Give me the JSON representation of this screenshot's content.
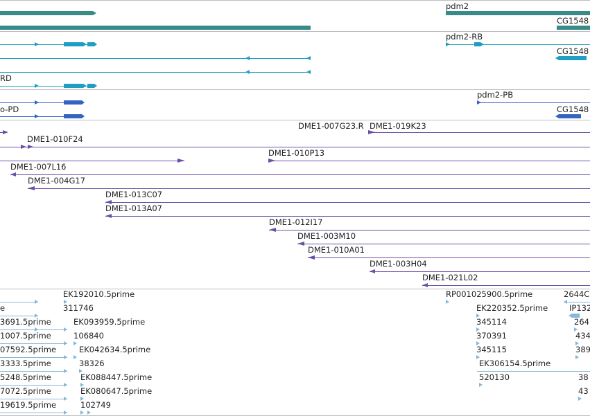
{
  "colors": {
    "gene": "#3a8a8a",
    "mrna": "#1e9ec2",
    "cds": "#3563c2",
    "clone": "#6a4fa6",
    "est": "#86b8d8",
    "separator": "#bdbdbd"
  },
  "gene_track": {
    "labels": [
      "pdm2",
      "CG1548"
    ]
  },
  "mrna_track": {
    "labels": [
      "pdm2-RB",
      "CG1548",
      "RD"
    ]
  },
  "cds_track": {
    "labels": [
      "pdm2-PB",
      "CG1548",
      "o-PD"
    ]
  },
  "clone_track": {
    "labels": [
      "DME1-007G23.R",
      "DME1-019K23",
      "DME1-010F24",
      "DME1-010P13",
      "DME1-007L16",
      "DME1-004G17",
      "DME1-013C07",
      "DME1-013A07",
      "DME1-012I17",
      "DME1-003M10",
      "DME1-010A01",
      "DME1-003H04",
      "DME1-021L02"
    ]
  },
  "est_track": {
    "labels": [
      "EK192010.5prime",
      "311746",
      "e",
      "3691.5prime",
      "EK093959.5prime",
      "1007.5prime",
      "106840",
      "07592.5prime",
      "EK042634.5prime",
      "3333.5prime",
      "38326",
      "5248.5prime",
      "EK088447.5prime",
      "7072.5prime",
      "EK080647.5prime",
      "19619.5prime",
      "102749",
      "RP001025900.5prime",
      "2644C",
      "EK220352.5prime",
      "IP132",
      "345114",
      "264",
      "370391",
      "434",
      "345115",
      "389",
      "EK306154.5prime",
      "520130",
      "38",
      "43"
    ]
  }
}
